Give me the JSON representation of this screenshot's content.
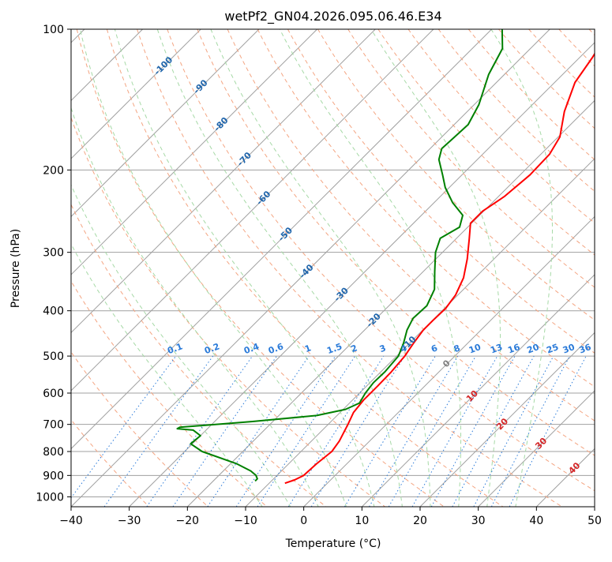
{
  "chart_data": {
    "type": "line",
    "subtype": "skew-t log-p diagram",
    "title": "wetPf2_GN04.2026.095.06.46.E34",
    "xlabel": "Temperature (°C)",
    "ylabel": "Pressure (hPa)",
    "xlim": [
      -40,
      50
    ],
    "ylim": [
      1050,
      100
    ],
    "yscale": "log",
    "skew": 35,
    "grid": true,
    "xticks": [
      -40,
      -30,
      -20,
      -10,
      0,
      10,
      20,
      30,
      40,
      50
    ],
    "yticks": [
      100,
      200,
      300,
      400,
      500,
      600,
      700,
      800,
      900,
      1000
    ],
    "series": [
      {
        "role": "temperature",
        "color": "#ff0000",
        "points": [
          [
            935,
            -7.3
          ],
          [
            920,
            -6.2
          ],
          [
            900,
            -5.4
          ],
          [
            850,
            -5.2
          ],
          [
            800,
            -4.7
          ],
          [
            760,
            -5.2
          ],
          [
            700,
            -6.6
          ],
          [
            660,
            -7.7
          ],
          [
            620,
            -8.1
          ],
          [
            580,
            -8.1
          ],
          [
            540,
            -8.2
          ],
          [
            500,
            -8.6
          ],
          [
            470,
            -9.3
          ],
          [
            440,
            -9.9
          ],
          [
            420,
            -9.9
          ],
          [
            395,
            -9.8
          ],
          [
            370,
            -10.4
          ],
          [
            340,
            -12.0
          ],
          [
            310,
            -14.6
          ],
          [
            280,
            -17.8
          ],
          [
            260,
            -20.2
          ],
          [
            245,
            -20.2
          ],
          [
            228,
            -19.0
          ],
          [
            205,
            -18.3
          ],
          [
            185,
            -18.5
          ],
          [
            170,
            -19.7
          ],
          [
            150,
            -23.3
          ],
          [
            130,
            -26.5
          ],
          [
            115,
            -27.8
          ],
          [
            100,
            -29.7
          ]
        ]
      },
      {
        "role": "dewpoint",
        "color": "#008000",
        "points": [
          [
            925,
            -12.8
          ],
          [
            915,
            -12.8
          ],
          [
            900,
            -13.6
          ],
          [
            880,
            -15.3
          ],
          [
            850,
            -18.9
          ],
          [
            800,
            -27.0
          ],
          [
            770,
            -30.3
          ],
          [
            740,
            -30.0
          ],
          [
            720,
            -32.2
          ],
          [
            715,
            -35.2
          ],
          [
            710,
            -35.0
          ],
          [
            690,
            -23.5
          ],
          [
            670,
            -13.5
          ],
          [
            650,
            -9.6
          ],
          [
            630,
            -8.3
          ],
          [
            600,
            -9.0
          ],
          [
            570,
            -9.4
          ],
          [
            540,
            -9.3
          ],
          [
            500,
            -9.7
          ],
          [
            470,
            -11.0
          ],
          [
            440,
            -12.7
          ],
          [
            415,
            -13.7
          ],
          [
            390,
            -13.5
          ],
          [
            360,
            -15.0
          ],
          [
            330,
            -18.0
          ],
          [
            300,
            -21.2
          ],
          [
            280,
            -22.8
          ],
          [
            265,
            -21.4
          ],
          [
            250,
            -22.9
          ],
          [
            235,
            -26.8
          ],
          [
            218,
            -30.7
          ],
          [
            205,
            -33.3
          ],
          [
            190,
            -36.6
          ],
          [
            180,
            -38.0
          ],
          [
            170,
            -37.8
          ],
          [
            160,
            -37.6
          ],
          [
            145,
            -39.2
          ],
          [
            125,
            -42.7
          ],
          [
            110,
            -44.8
          ],
          [
            100,
            -48.2
          ]
        ]
      }
    ],
    "dry_adiabats_theta_c": [
      -30,
      -20,
      -10,
      0,
      10,
      20,
      30,
      40,
      50,
      60,
      70,
      80,
      90,
      100,
      110,
      120,
      130,
      140,
      150,
      160,
      170,
      180,
      190,
      200
    ],
    "moist_adiabats_theta_c": [
      -10,
      -5,
      0,
      5,
      10,
      15,
      20,
      25,
      30,
      35
    ],
    "mixing_ratio_lines_gkg": [
      "0.1",
      "0.2",
      "0.4",
      "0.6",
      "1",
      "1.5",
      "2",
      "3",
      "4",
      "6",
      "8",
      "10",
      "13",
      "16",
      "20",
      "25",
      "30",
      "36"
    ],
    "isotherm_labels_blue": [
      "-100",
      "-90",
      "-80",
      "-70",
      "-60",
      "-50",
      "-40",
      "-30",
      "-20",
      "-10"
    ],
    "isotherm_labels_dark": [
      "0"
    ],
    "isotherm_labels_red": [
      "10",
      "20",
      "30",
      "40"
    ]
  },
  "colors": {
    "temperature": "#ff0000",
    "dewpoint": "#008000",
    "isotherm": "#a0a0a0",
    "dry_adiabat": "#f4a582",
    "moist_adiabat": "#a6d9a6",
    "mixing_ratio": "#2b7bd9",
    "isotherm_label_blue": "#2166ac",
    "isotherm_label_red": "#d62728"
  }
}
